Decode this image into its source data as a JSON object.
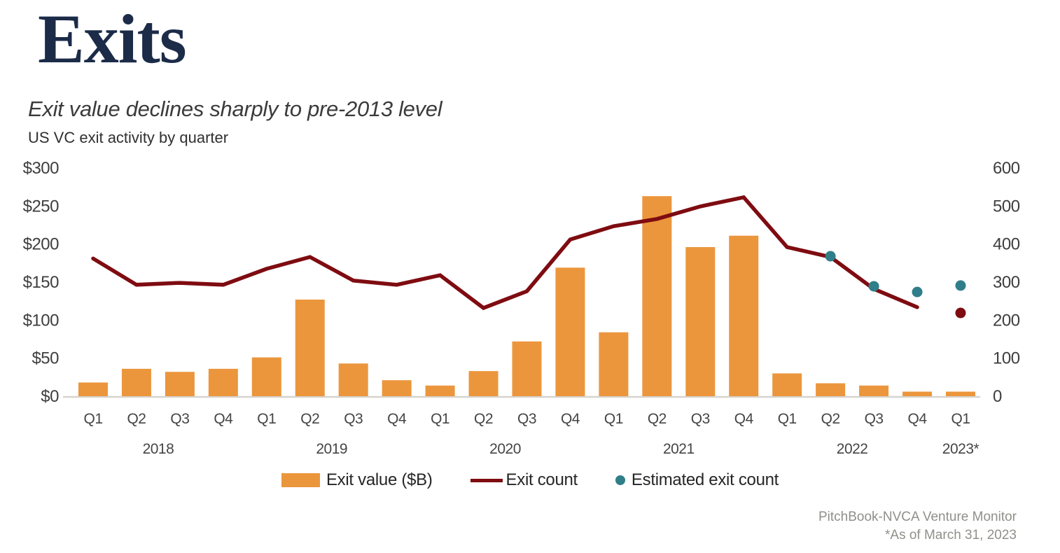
{
  "header": {
    "section_title": "Exits",
    "chart_title": "Exit value declines sharply to pre-2013 level",
    "chart_subtitle": "US VC exit activity by quarter"
  },
  "legend": {
    "items": [
      {
        "label": "Exit value ($B)",
        "swatch": "bar",
        "color": "#EB963C"
      },
      {
        "label": "Exit count",
        "swatch": "line",
        "color": "#7E0C11"
      },
      {
        "label": "Estimated exit count",
        "swatch": "dot",
        "color": "#2F7E8A"
      }
    ]
  },
  "footer": {
    "source": "PitchBook-NVCA Venture Monitor",
    "as_of": "*As of March 31, 2023"
  },
  "chart_data": {
    "type": "bar+line",
    "title": "Exit value declines sharply to pre-2013 level",
    "subtitle": "US VC exit activity by quarter",
    "quarters": [
      "Q1",
      "Q2",
      "Q3",
      "Q4",
      "Q1",
      "Q2",
      "Q3",
      "Q4",
      "Q1",
      "Q2",
      "Q3",
      "Q4",
      "Q1",
      "Q2",
      "Q3",
      "Q4",
      "Q1",
      "Q2",
      "Q3",
      "Q4",
      "Q1"
    ],
    "years": [
      {
        "label": "2018",
        "start": 0,
        "count": 4
      },
      {
        "label": "2019",
        "start": 4,
        "count": 4
      },
      {
        "label": "2020",
        "start": 8,
        "count": 4
      },
      {
        "label": "2021",
        "start": 12,
        "count": 4
      },
      {
        "label": "2022",
        "start": 16,
        "count": 4
      },
      {
        "label": "2023*",
        "start": 20,
        "count": 1
      }
    ],
    "left_axis": {
      "title": "Exit value ($B)",
      "ticks": [
        "$0",
        "$50",
        "$100",
        "$150",
        "$200",
        "$250",
        "$300"
      ],
      "min": 0,
      "max": 300,
      "step": 50
    },
    "right_axis": {
      "title": "Exit count",
      "ticks": [
        "0",
        "100",
        "200",
        "300",
        "400",
        "500",
        "600"
      ],
      "min": 0,
      "max": 600,
      "step": 100
    },
    "grid": false,
    "legend_position": "bottom",
    "series": [
      {
        "name": "Exit value ($B)",
        "type": "bar",
        "axis": "left",
        "color": "#EB963C",
        "values": [
          18,
          36,
          32,
          36,
          51,
          127,
          43,
          21,
          14,
          33,
          72,
          169,
          84,
          263,
          196,
          211,
          30,
          17,
          14,
          6,
          6
        ]
      },
      {
        "name": "Exit count",
        "type": "line",
        "axis": "right",
        "color": "#7E0C11",
        "values": [
          362,
          293,
          298,
          293,
          335,
          366,
          304,
          293,
          318,
          232,
          276,
          412,
          447,
          466,
          499,
          523,
          392,
          366,
          282,
          234,
          null
        ]
      },
      {
        "name": "Exit count (Q1 2023 point)",
        "type": "points",
        "axis": "right",
        "color": "#7E0C11",
        "points": [
          {
            "index": 20,
            "value": 219
          }
        ]
      },
      {
        "name": "Estimated exit count",
        "type": "points",
        "axis": "right",
        "color": "#2F7E8A",
        "points": [
          {
            "index": 17,
            "value": 368
          },
          {
            "index": 18,
            "value": 289
          },
          {
            "index": 19,
            "value": 274
          },
          {
            "index": 20,
            "value": 291
          }
        ]
      }
    ]
  }
}
